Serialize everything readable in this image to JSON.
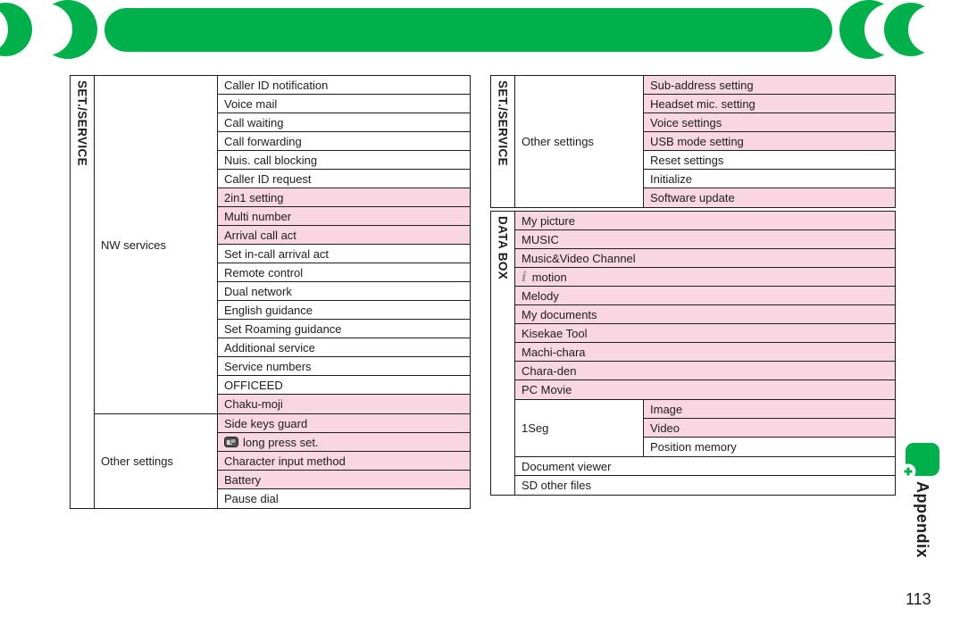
{
  "page": {
    "number": "113",
    "appendix_tab": "Appendix"
  },
  "colors": {
    "green": "#00b14b",
    "pink": "#f8d6e2",
    "border": "#1d1d1b"
  },
  "tables": [
    {
      "id": "set-service-left",
      "section": "SET./SERVICE",
      "groups": [
        {
          "label": "NW services",
          "items": [
            {
              "label": "Caller ID notification",
              "pink": false
            },
            {
              "label": "Voice mail",
              "pink": false
            },
            {
              "label": "Call waiting",
              "pink": false
            },
            {
              "label": "Call forwarding",
              "pink": false
            },
            {
              "label": "Nuis. call blocking",
              "pink": false
            },
            {
              "label": "Caller ID request",
              "pink": false
            },
            {
              "label": "2in1 setting",
              "pink": true
            },
            {
              "label": "Multi number",
              "pink": true
            },
            {
              "label": "Arrival call act",
              "pink": true
            },
            {
              "label": "Set in-call arrival act",
              "pink": false
            },
            {
              "label": "Remote control",
              "pink": false
            },
            {
              "label": "Dual network",
              "pink": false
            },
            {
              "label": "English guidance",
              "pink": false
            },
            {
              "label": "Set Roaming guidance",
              "pink": false
            },
            {
              "label": "Additional service",
              "pink": false
            },
            {
              "label": "Service numbers",
              "pink": false
            },
            {
              "label": "OFFICEED",
              "pink": false
            },
            {
              "label": "Chaku-moji",
              "pink": true
            }
          ]
        },
        {
          "label": "Other settings",
          "items": [
            {
              "label": "Side keys guard",
              "pink": true
            },
            {
              "label": "long press set.",
              "pink": true,
              "icon": "multitask-key-icon"
            },
            {
              "label": "Character input method",
              "pink": true
            },
            {
              "label": "Battery",
              "pink": true
            },
            {
              "label": "Pause dial",
              "pink": false
            }
          ]
        }
      ]
    },
    {
      "id": "set-service-right",
      "section": "SET./SERVICE",
      "groups": [
        {
          "label": "Other settings",
          "items": [
            {
              "label": "Sub-address setting",
              "pink": true
            },
            {
              "label": "Headset mic. setting",
              "pink": true
            },
            {
              "label": "Voice settings",
              "pink": true
            },
            {
              "label": "USB mode setting",
              "pink": true
            },
            {
              "label": "Reset settings",
              "pink": false
            },
            {
              "label": "Initialize",
              "pink": false
            },
            {
              "label": "Software update",
              "pink": true
            }
          ]
        }
      ]
    },
    {
      "id": "data-box",
      "section": "DATA BOX",
      "groups": [
        {
          "label": null,
          "items": [
            {
              "label": "My picture",
              "pink": true
            },
            {
              "label": "MUSIC",
              "pink": true
            },
            {
              "label": "Music&Video Channel",
              "pink": true
            },
            {
              "label": "motion",
              "pink": true,
              "icon": "imode-i-icon"
            },
            {
              "label": "Melody",
              "pink": true
            },
            {
              "label": "My documents",
              "pink": true
            },
            {
              "label": "Kisekae Tool",
              "pink": true
            },
            {
              "label": "Machi-chara",
              "pink": true
            },
            {
              "label": "Chara-den",
              "pink": true
            },
            {
              "label": "PC Movie",
              "pink": true
            }
          ]
        },
        {
          "label": "1Seg",
          "items": [
            {
              "label": "Image",
              "pink": true
            },
            {
              "label": "Video",
              "pink": true
            },
            {
              "label": "Position memory",
              "pink": false
            }
          ]
        },
        {
          "label": null,
          "items": [
            {
              "label": "Document viewer",
              "pink": false
            },
            {
              "label": "SD other files",
              "pink": false
            }
          ]
        }
      ]
    }
  ]
}
